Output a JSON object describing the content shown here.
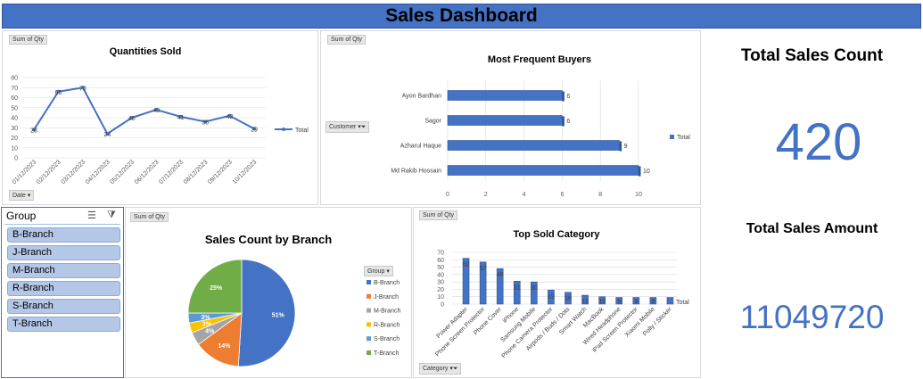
{
  "header": {
    "title": "Sales Dashboard"
  },
  "pivot_buttons": {
    "sum_of_qty": "Sum of Qty",
    "date": "Date",
    "customer": "Customer",
    "group": "Group",
    "category": "Category"
  },
  "kpis": {
    "sales_count_label": "Total Sales Count",
    "sales_count_value": "420",
    "sales_amount_label": "Total Sales Amount",
    "sales_amount_value": "11049720"
  },
  "slicer": {
    "title": "Group",
    "items": [
      "B-Branch",
      "J-Branch",
      "M-Branch",
      "R-Branch",
      "S-Branch",
      "T-Branch"
    ]
  },
  "chart_data": [
    {
      "id": "quantities",
      "type": "line",
      "title": "Quantities Sold",
      "categories": [
        "01/12/2023",
        "02/12/2023",
        "03/12/2023",
        "04/12/2023",
        "05/12/2023",
        "06/12/2023",
        "07/12/2023",
        "08/12/2023",
        "09/12/2023",
        "10/12/2023"
      ],
      "series": [
        {
          "name": "Total",
          "values": [
            28,
            66,
            70,
            24,
            40,
            48,
            41,
            36,
            42,
            29
          ]
        }
      ],
      "ylim": [
        0,
        80
      ],
      "yticks": [
        0,
        10,
        20,
        30,
        40,
        50,
        60,
        70,
        80
      ],
      "legend": "right",
      "color": "#4472c4"
    },
    {
      "id": "buyers",
      "type": "bar",
      "orientation": "horizontal",
      "title": "Most Frequent Buyers",
      "categories": [
        "Ayon Bardhan",
        "Sagor",
        "Azharul Haque",
        "Md Rakib Hossain"
      ],
      "series": [
        {
          "name": "Total",
          "values": [
            6,
            6,
            9,
            10
          ]
        }
      ],
      "xlim": [
        0,
        10
      ],
      "xticks": [
        0,
        2,
        4,
        6,
        8,
        10
      ],
      "legend": "right",
      "color": "#4472c4"
    },
    {
      "id": "branch",
      "type": "pie",
      "title": "Sales Count by Branch",
      "legend_title": "Group",
      "categories": [
        "B-Branch",
        "J-Branch",
        "M-Branch",
        "R-Branch",
        "S-Branch",
        "T-Branch"
      ],
      "values": [
        51,
        14,
        4,
        3,
        3,
        25
      ],
      "labels": [
        "51%",
        "14%",
        "4%",
        "3%",
        "3%",
        "25%"
      ],
      "colors": [
        "#4472c4",
        "#ed7d31",
        "#a5a5a5",
        "#ffc000",
        "#5b9bd5",
        "#70ad47"
      ],
      "legend": "right"
    },
    {
      "id": "category",
      "type": "bar",
      "orientation": "vertical",
      "title": "Top Sold Category",
      "categories": [
        "Power Adapter",
        "Phone Screen Protector",
        "Phone Cover",
        "iPhone",
        "Samsung Mobile",
        "Phone Camera Protector",
        "Airpods / Buds / Dots",
        "Smart Watch",
        "MacBook",
        "Wired Headphone",
        "iPad Screen Protector",
        "Xiaomi Mobile",
        "Polly / Sticker"
      ],
      "series": [
        {
          "name": "Total",
          "values": [
            62,
            57,
            48,
            31,
            30,
            19,
            16,
            12,
            10,
            9,
            9,
            9,
            9
          ]
        }
      ],
      "ylim": [
        0,
        70
      ],
      "yticks": [
        0,
        10,
        20,
        30,
        40,
        50,
        60,
        70
      ],
      "legend": "right",
      "color": "#4472c4"
    }
  ]
}
